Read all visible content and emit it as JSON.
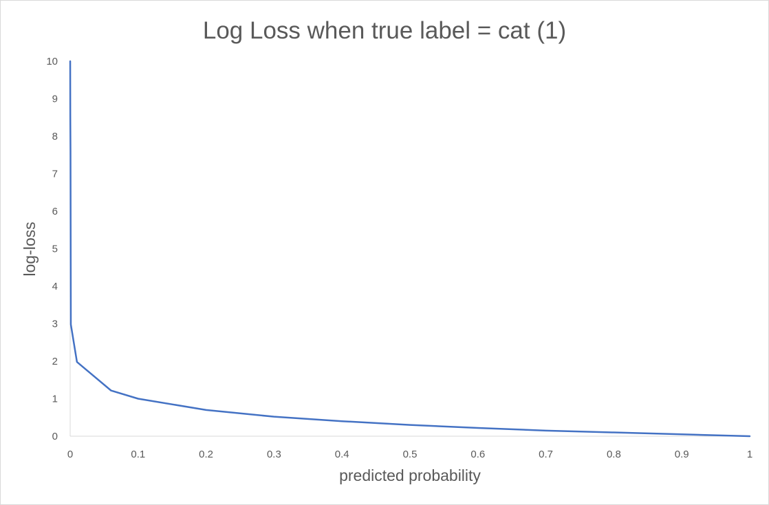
{
  "chart_data": {
    "type": "line",
    "title": "Log Loss when true label = cat (1)",
    "xlabel": "predicted probability",
    "ylabel": "log-loss",
    "xlim": [
      0,
      1
    ],
    "ylim": [
      0,
      10
    ],
    "x_ticks": [
      "0",
      "0.1",
      "0.2",
      "0.3",
      "0.4",
      "0.5",
      "0.6",
      "0.7",
      "0.8",
      "0.9",
      "1"
    ],
    "y_ticks": [
      "0",
      "1",
      "2",
      "3",
      "4",
      "5",
      "6",
      "7",
      "8",
      "9",
      "10"
    ],
    "grid": false,
    "legend": "none",
    "line_color": "#4472c4",
    "series": [
      {
        "x": [
          5e-05,
          0.0002,
          0.0005,
          0.001,
          0.01,
          0.06,
          0.1,
          0.2,
          0.3,
          0.4,
          0.5,
          0.6,
          0.7,
          0.8,
          0.9,
          1.0
        ],
        "values": [
          10,
          8.52,
          7.6,
          2.98,
          1.98,
          1.22,
          1.0,
          0.7,
          0.52,
          0.4,
          0.3,
          0.22,
          0.15,
          0.1,
          0.05,
          0
        ]
      }
    ]
  }
}
